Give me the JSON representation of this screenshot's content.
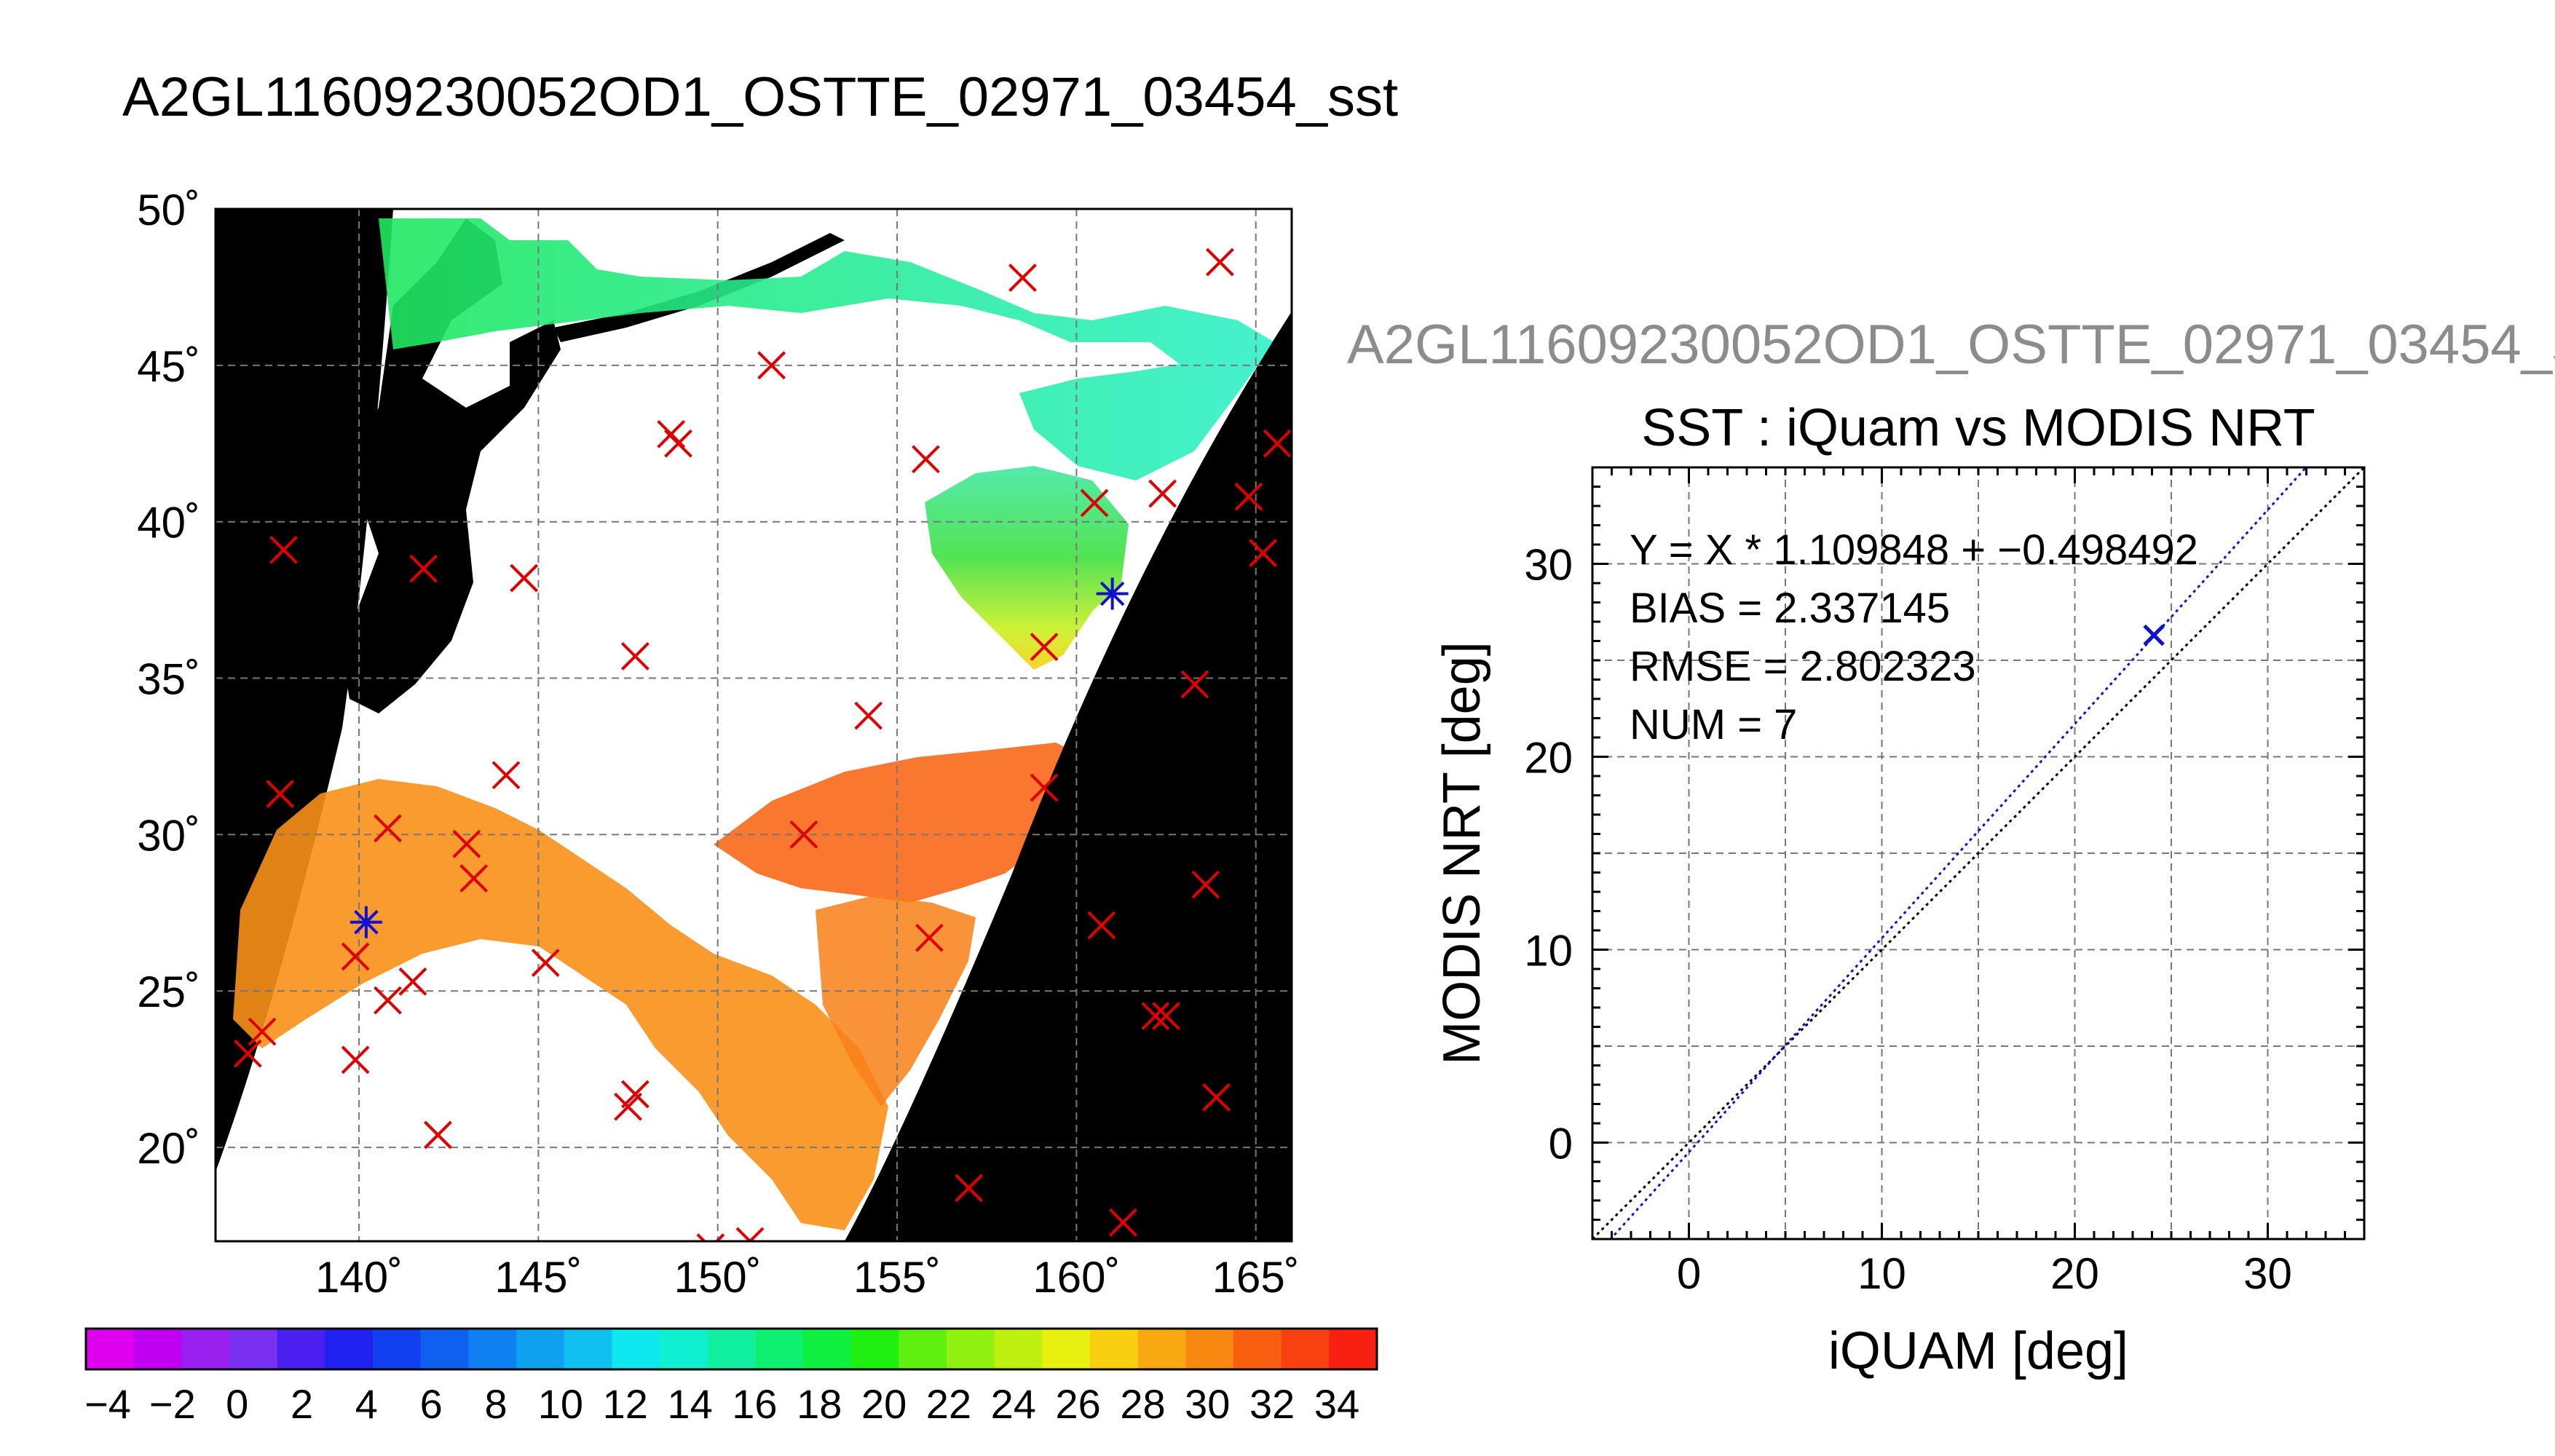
{
  "map_title": "A2GL11609230052OD1_OSTTE_02971_03454_sst",
  "scatter_header": "A2GL11609230052OD1_OSTTE_02971_03454_s",
  "map": {
    "lat_ticks": [
      "50˚",
      "45˚",
      "40˚",
      "35˚",
      "30˚",
      "25˚",
      "20˚"
    ],
    "lon_ticks": [
      "140˚",
      "145˚",
      "150˚",
      "155˚",
      "160˚",
      "165˚"
    ],
    "background_color": "#000000",
    "cloud_color": "#ffffff",
    "marker_color": "#e00000",
    "highlight_color": "#1010d0"
  },
  "colorbar": {
    "labels": [
      "−4",
      "−2",
      "0",
      "2",
      "4",
      "6",
      "8",
      "10",
      "12",
      "14",
      "16",
      "18",
      "20",
      "22",
      "24",
      "26",
      "28",
      "30",
      "32",
      "34"
    ],
    "colors": [
      "#e000f0",
      "#c000f0",
      "#9a20f0",
      "#7a30f0",
      "#4a20f0",
      "#2020f0",
      "#1040f0",
      "#1060f0",
      "#1080f0",
      "#10a0f0",
      "#10c0f0",
      "#10e8f0",
      "#10f0d0",
      "#10f0a0",
      "#10f070",
      "#10f040",
      "#20f010",
      "#60f010",
      "#90f010",
      "#c0f010",
      "#e8f010",
      "#f8d010",
      "#f8a810",
      "#f88810",
      "#f86010",
      "#f84010",
      "#f82010"
    ]
  },
  "chart_data": [
    {
      "type": "scatter",
      "title": "A2GL11609230052OD1_OSTTE_02971_03454_sst",
      "xlim": [
        136,
        166
      ],
      "ylim": [
        17,
        50
      ],
      "lon_ticks": [
        140,
        145,
        150,
        155,
        160,
        165
      ],
      "lat_ticks": [
        50,
        45,
        40,
        35,
        30,
        25,
        20
      ],
      "colorbar": {
        "min": -4,
        "max": 34,
        "step": 2
      },
      "series": [
        {
          "name": "",
          "marker": "x",
          "color": "#e00000",
          "points": [
            [
              164.0,
              48.3
            ],
            [
              158.5,
              47.8
            ],
            [
              151.5,
              45.0
            ],
            [
              148.7,
              42.8
            ],
            [
              148.9,
              42.5
            ],
            [
              155.8,
              42.0
            ],
            [
              160.5,
              40.6
            ],
            [
              162.4,
              40.9
            ],
            [
              165.6,
              42.5
            ],
            [
              164.8,
              40.8
            ],
            [
              165.2,
              39.0
            ],
            [
              141.8,
              38.5
            ],
            [
              144.6,
              38.2
            ],
            [
              137.9,
              39.1
            ],
            [
              159.1,
              36.0
            ],
            [
              147.7,
              35.7
            ],
            [
              163.3,
              34.8
            ],
            [
              154.2,
              33.8
            ],
            [
              144.1,
              31.9
            ],
            [
              159.1,
              31.5
            ],
            [
              137.8,
              31.3
            ],
            [
              140.8,
              30.2
            ],
            [
              152.4,
              30.0
            ],
            [
              143.0,
              29.7
            ],
            [
              143.2,
              28.6
            ],
            [
              163.6,
              28.4
            ],
            [
              160.7,
              27.1
            ],
            [
              155.9,
              26.7
            ],
            [
              139.9,
              26.1
            ],
            [
              141.5,
              25.3
            ],
            [
              140.8,
              24.7
            ],
            [
              145.2,
              25.9
            ],
            [
              162.2,
              24.2
            ],
            [
              162.5,
              24.2
            ],
            [
              137.3,
              23.7
            ],
            [
              136.9,
              23.0
            ],
            [
              139.9,
              22.8
            ],
            [
              147.7,
              21.7
            ],
            [
              147.5,
              21.3
            ],
            [
              163.9,
              21.6
            ],
            [
              142.2,
              20.4
            ],
            [
              157.0,
              18.7
            ],
            [
              161.3,
              17.6
            ],
            [
              150.9,
              17.0
            ],
            [
              149.8,
              16.8
            ]
          ]
        },
        {
          "name": "",
          "marker": "*",
          "color": "#1010d0",
          "points": [
            [
              140.2,
              27.2
            ],
            [
              161.0,
              37.7
            ]
          ]
        }
      ]
    },
    {
      "type": "scatter",
      "title": "SST : iQuam vs MODIS NRT",
      "xlabel": "iQUAM [deg]",
      "ylabel": "MODIS NRT [deg]",
      "xlim": [
        -5,
        35
      ],
      "ylim": [
        -5,
        35
      ],
      "x_ticks": [
        0,
        10,
        20,
        30
      ],
      "y_ticks": [
        0,
        10,
        20,
        30
      ],
      "grid": true,
      "annotations": [
        "Y = X * 1.109848 + −0.498492",
        "BIAS = 2.337145",
        "RMSE = 2.802323",
        "NUM = 7"
      ],
      "series": [
        {
          "name": "",
          "marker": "x",
          "color": "#1010d0",
          "x": [
            24.1
          ],
          "y": [
            26.3
          ]
        }
      ],
      "lines": [
        {
          "name": "",
          "style": "dotted",
          "color": "#000000",
          "slope": 1.0,
          "intercept": 0.0
        },
        {
          "name": "",
          "style": "dotted",
          "color": "#1010d0",
          "slope": 1.109848,
          "intercept": -0.498492
        }
      ]
    }
  ]
}
